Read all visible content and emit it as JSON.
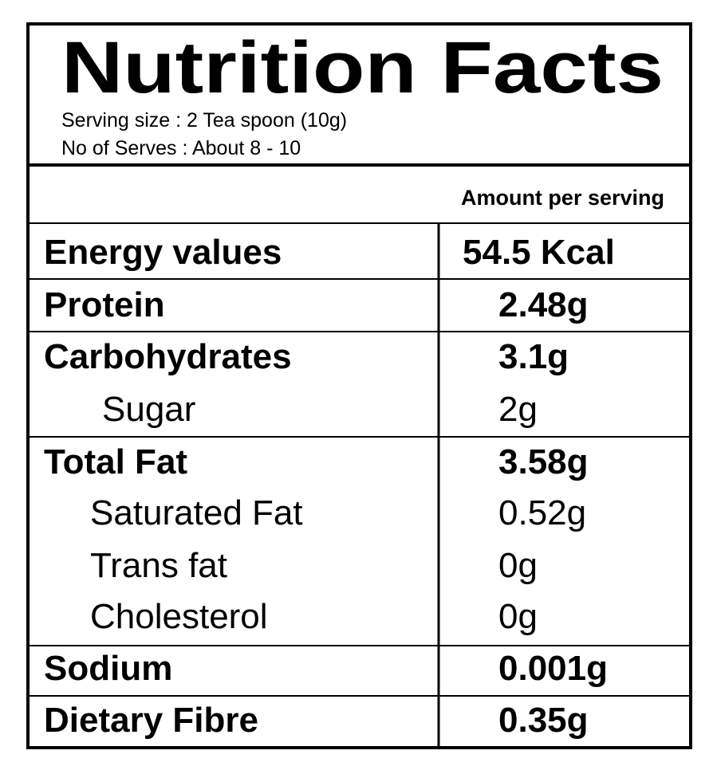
{
  "header": {
    "title": "Nutrition Facts",
    "serving_size": "Serving size : 2 Tea spoon (10g)",
    "servings": "No of Serves : About 8 - 10"
  },
  "table": {
    "column_header": "Amount per serving",
    "rows": [
      [
        "Energy values",
        "54.5 Kcal"
      ],
      [
        "Protein",
        "2.48g"
      ],
      [
        "Carbohydrates",
        "3.1g"
      ],
      [
        "Sugar",
        "2g"
      ],
      [
        "Total Fat",
        "3.58g"
      ],
      [
        "Saturated Fat",
        "0.52g"
      ],
      [
        "Trans fat",
        "0g"
      ],
      [
        "Cholesterol",
        "0g"
      ],
      [
        "Sodium",
        "0.001g"
      ],
      [
        "Dietary Fibre",
        "0.35g"
      ]
    ]
  }
}
